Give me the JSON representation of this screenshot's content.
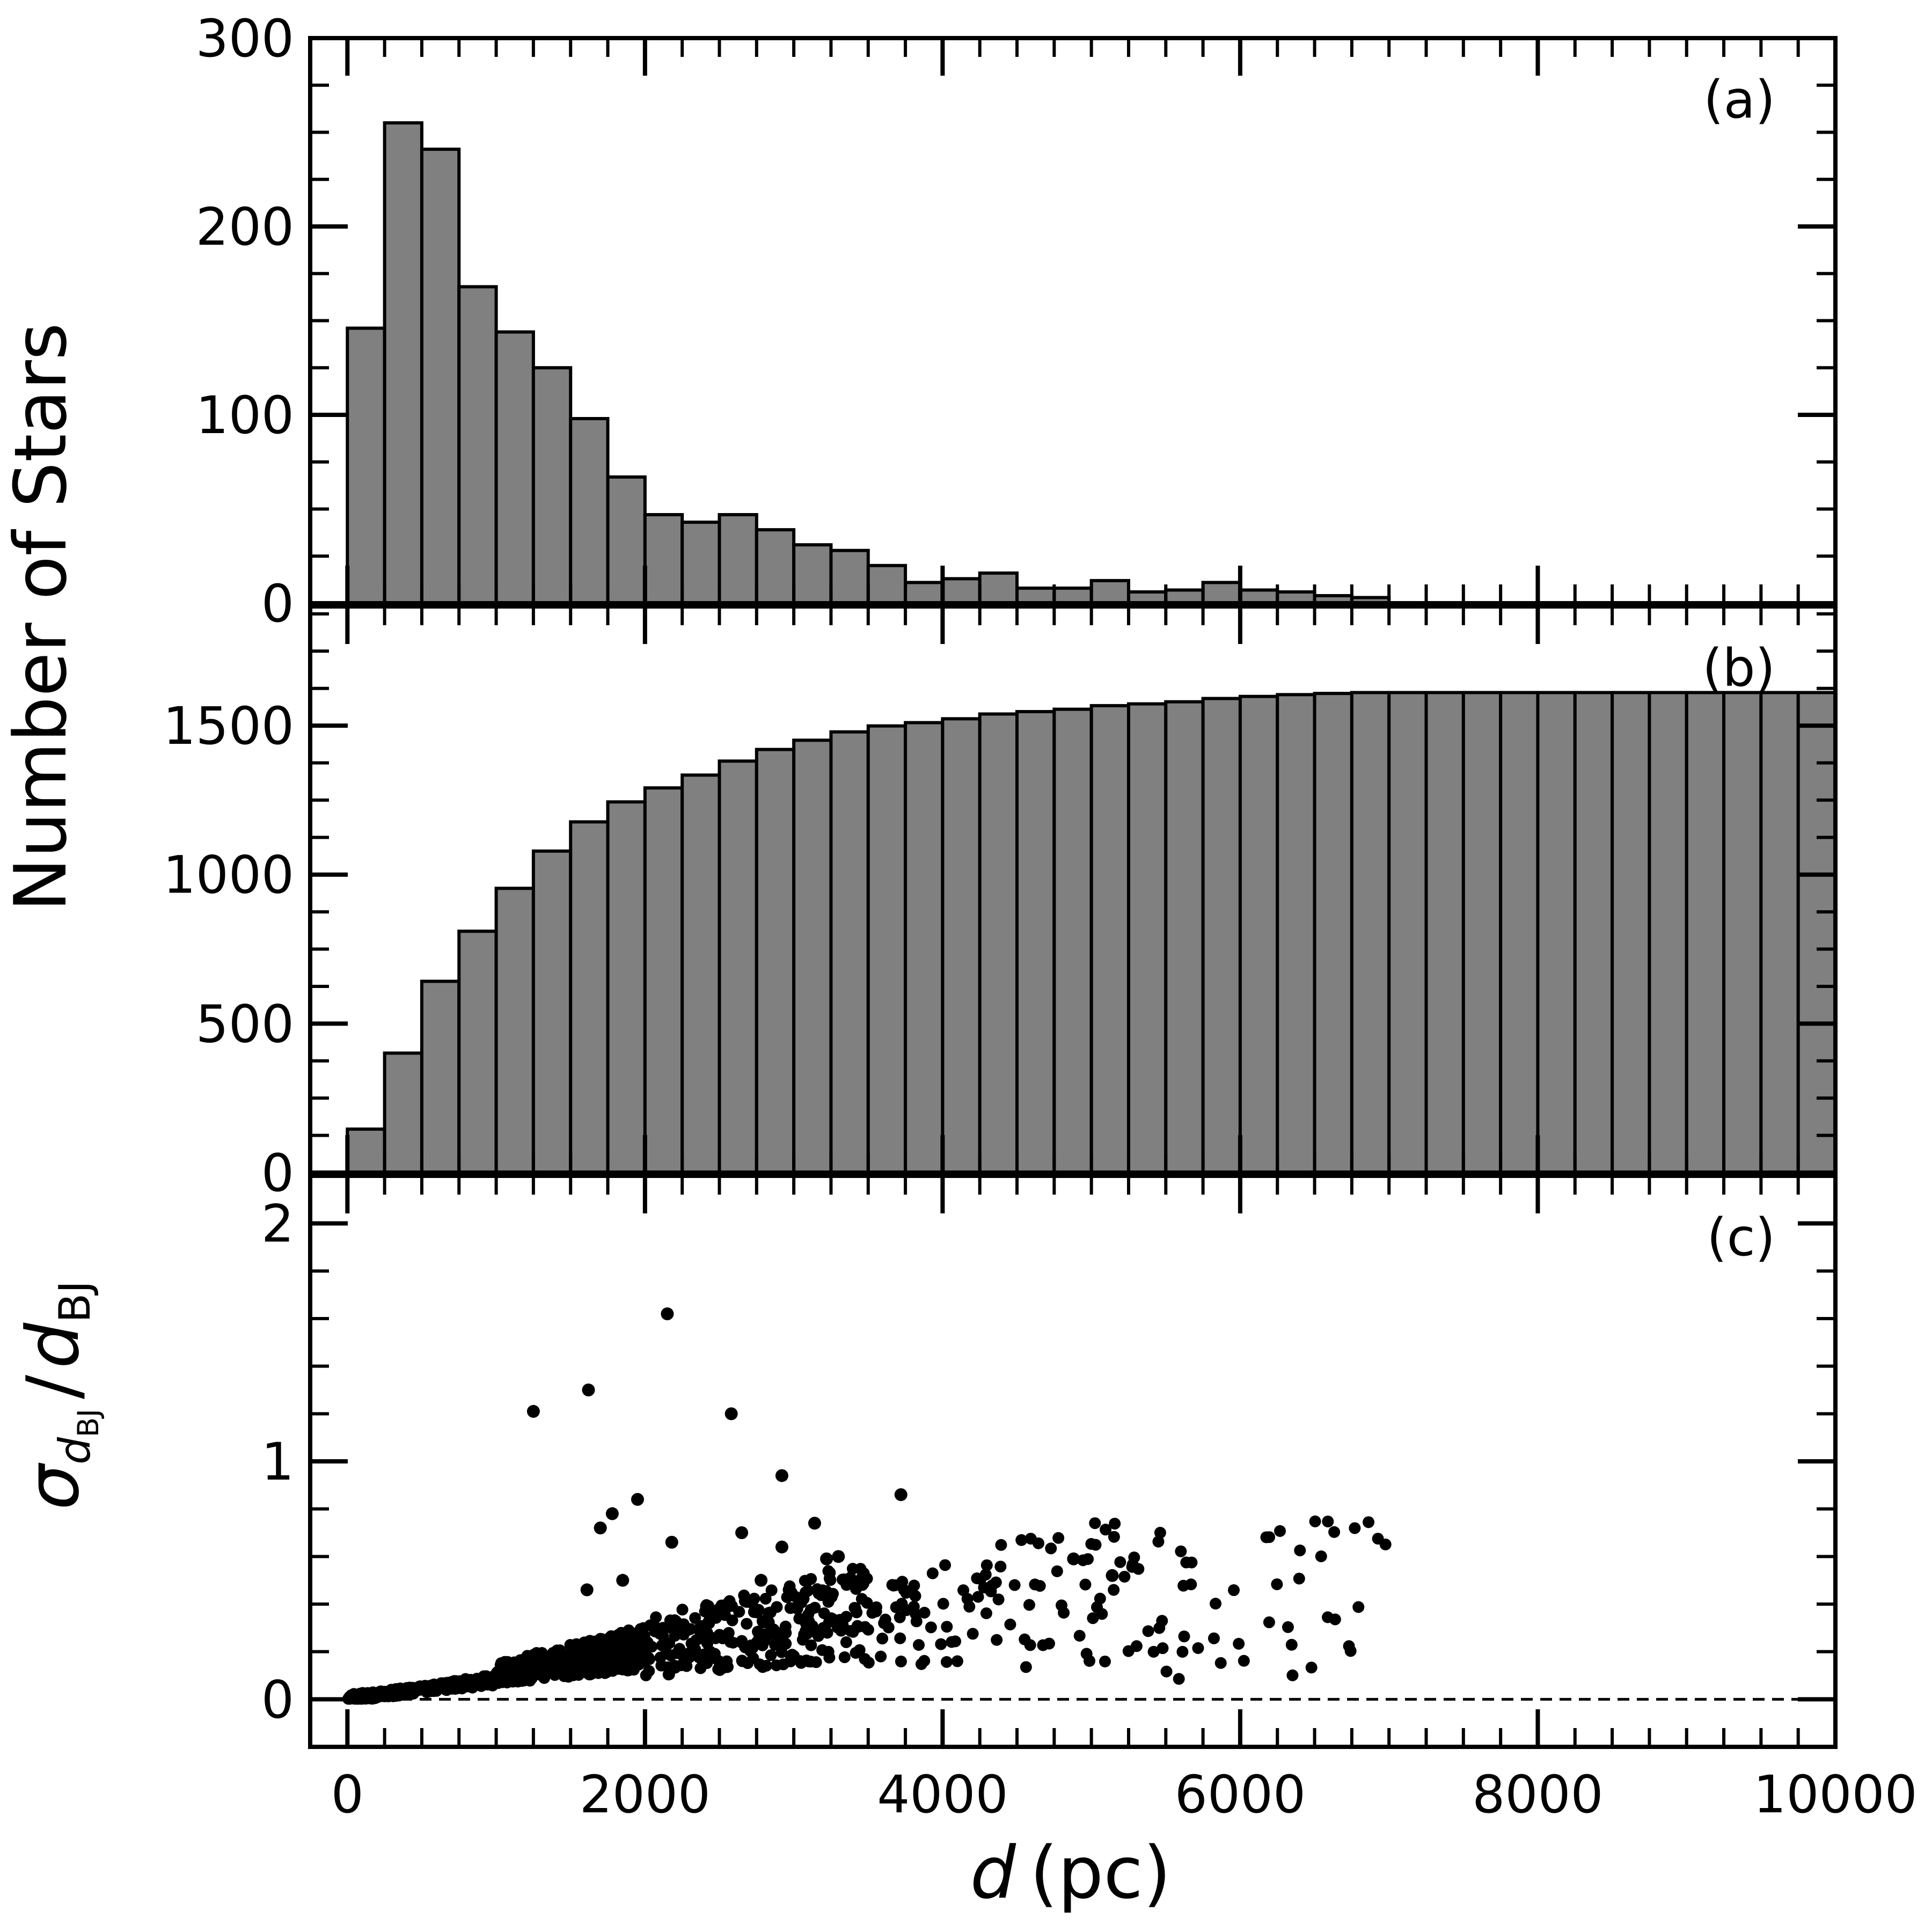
{
  "figure": {
    "ylabel_top": "Number of Stars",
    "xlabel": {
      "symbol": "d",
      "unit": "(pc)"
    },
    "ylabel_c": {
      "sigma": "σ",
      "sub_d": "d",
      "sub_sub": "BJ",
      "slash": "/",
      "d": "d",
      "d_sub": "BJ"
    },
    "colors": {
      "bar_fill": "#808080",
      "bar_edge": "#000000",
      "point": "#000000",
      "axis": "#000000"
    }
  },
  "chart_data": [
    {
      "panel": "a",
      "type": "bar",
      "label": "(a)",
      "xlim": [
        -250,
        10000
      ],
      "ylim": [
        0,
        300
      ],
      "yticks": [
        0,
        100,
        200,
        300
      ],
      "yminor": 25,
      "xmajor": [
        0,
        2000,
        4000,
        6000,
        8000,
        10000
      ],
      "xminor": 250,
      "bin_width": 250,
      "bins_start": 0,
      "values": [
        146,
        255,
        241,
        168,
        144,
        125,
        98,
        67,
        47,
        43,
        47,
        39,
        31,
        28,
        20,
        11,
        13,
        16,
        8,
        8,
        12,
        6,
        7,
        11,
        7,
        6,
        4,
        3,
        0,
        0,
        0,
        0,
        0,
        0,
        0,
        0,
        0,
        0,
        0,
        0
      ]
    },
    {
      "panel": "b",
      "type": "bar",
      "label": "(b)",
      "xlim": [
        -250,
        10000
      ],
      "ylim": [
        0,
        1900
      ],
      "yticks": [
        0,
        500,
        1000,
        1500
      ],
      "yminor": 125,
      "xmajor": [
        0,
        2000,
        4000,
        6000,
        8000,
        10000
      ],
      "xminor": 250,
      "bin_width": 250,
      "bins_start": 0,
      "values": [
        146,
        401,
        642,
        810,
        954,
        1079,
        1177,
        1244,
        1291,
        1334,
        1381,
        1420,
        1451,
        1479,
        1499,
        1510,
        1523,
        1539,
        1547,
        1555,
        1567,
        1573,
        1580,
        1591,
        1598,
        1604,
        1608,
        1611,
        1611,
        1611,
        1611,
        1611,
        1611,
        1611,
        1611,
        1611,
        1611,
        1611,
        1611,
        1611
      ]
    },
    {
      "panel": "c",
      "type": "scatter",
      "label": "(c)",
      "xlim": [
        -250,
        10000
      ],
      "ylim": [
        -0.2,
        2.2
      ],
      "yticks": [
        0,
        1,
        2
      ],
      "yminor": 0.2,
      "xticks": [
        0,
        2000,
        4000,
        6000,
        8000,
        10000
      ],
      "xminor": 250,
      "reference_line_y": 0,
      "highlighted_points": [
        [
          1250,
          1.21
        ],
        [
          1620,
          1.3
        ],
        [
          2150,
          1.62
        ],
        [
          2580,
          1.2
        ],
        [
          2920,
          0.94
        ],
        [
          3720,
          0.86
        ],
        [
          1950,
          0.84
        ],
        [
          1780,
          0.78
        ],
        [
          1700,
          0.72
        ],
        [
          3140,
          0.74
        ],
        [
          2180,
          0.66
        ],
        [
          2650,
          0.7
        ],
        [
          2920,
          0.64
        ],
        [
          1610,
          0.46
        ],
        [
          1850,
          0.5
        ],
        [
          4880,
          0.59
        ],
        [
          5140,
          0.52
        ],
        [
          2780,
          0.5
        ],
        [
          3300,
          0.6
        ],
        [
          3220,
          0.59
        ]
      ],
      "trend": {
        "segments": [
          {
            "x_min": 0,
            "x_max": 1000,
            "n": 260,
            "slope": 7.5e-05,
            "spread": 0.05
          },
          {
            "x_min": 1000,
            "x_max": 2000,
            "n": 430,
            "slope": 9.5e-05,
            "spread": 0.09
          },
          {
            "x_min": 2000,
            "x_max": 3500,
            "n": 260,
            "slope": 9e-05,
            "spread": 0.12
          },
          {
            "x_min": 3500,
            "x_max": 5500,
            "n": 110,
            "slope": 7e-05,
            "spread": 0.12
          },
          {
            "x_min": 5500,
            "x_max": 7000,
            "n": 40,
            "slope": 5e-05,
            "spread": 0.1
          }
        ]
      }
    }
  ]
}
